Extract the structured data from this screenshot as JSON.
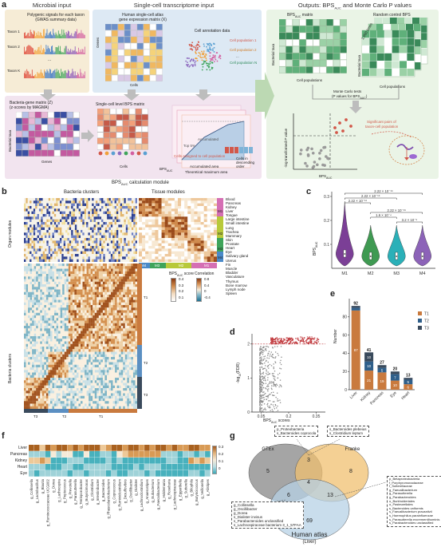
{
  "panel_a": {
    "letter": "a",
    "header_microbial": "Microbial input",
    "header_singlecell": "Single-cell transcriptome input",
    "header_outputs": "Outputs: BPS",
    "header_outputs_sub": "AUC",
    "header_outputs_tail": " and Monte Carlo P values",
    "polygenic_title": "Polygenic signals for each taxon",
    "polygenic_sub": "(GWAS summary data)",
    "taxa": [
      "Taxon 1",
      "Taxon 2",
      "Taxon K"
    ],
    "ellipsis": "...",
    "hs_atlas_title": "Human single-cell atlas",
    "hs_atlas_sub": "gene expression matrix (X)",
    "cell_annot": "Cell annotation data",
    "cell_pops": [
      "Cell population 1",
      "Cell population 2",
      "Cell population N"
    ],
    "genes_label": "Genes",
    "cells_label": "Cells",
    "bacteria_gene_title": "Bacteria-gene matrix (Z)",
    "bacteria_gene_sub": "(z-scores by MAGMA)",
    "bacterial_taxa": "Bacterial taxa",
    "sc_bps_title": "Single-cell level BPS matrix",
    "accumulated": "Accumulated",
    "top5": "Top 5%",
    "cells_assigned": "Cells assigned to cell population",
    "accumulated_area": "Accumulated area",
    "theoretical_max": "Theoretical maximum area",
    "cells_desc": "Cells in descending order",
    "bps_auc_eq": "BPS",
    "bps_calc_module": "BPS",
    "bps_calc_module_tail": " calculation module",
    "bps_matrix_title": "BPS",
    "bps_matrix_title_tail": " matrix",
    "random_control": "Random control BPS",
    "n1000": "1,000 times",
    "cell_pops_label": "Cell populations",
    "monte_carlo": "Monte Carlo tests",
    "monte_carlo_sub": "(P values for BPS",
    "log_p": "-log-transformed P value",
    "sig_pairs": "Significant pairs of",
    "sig_pairs2": "taxon-cell population",
    "bps_axis": "BPS"
  },
  "panel_b": {
    "letter": "b",
    "bacteria_clusters": "Bacteria clusters",
    "tissue_modules": "Tissue modules",
    "organ_modules": "Organ modules",
    "bacteria_clusters_y": "Bacteria clusters",
    "tissues_m1": [
      "Blood",
      "Pancreas",
      "Kidney",
      "Liver",
      "Tongue",
      "Large intestine",
      "Small intestine"
    ],
    "tissues_m2": [
      "Lung",
      "Trachea",
      "Mammary",
      "Skin",
      "Prostate",
      "Heart",
      "Eye",
      "Salivary gland"
    ],
    "tissues_m3": [
      "Uterus",
      "Fin",
      "Muscle",
      "Bladder",
      "Vasculature"
    ],
    "tissues_m4": [
      "Thymus",
      "Bone marrow",
      "Lymph node",
      "Spleen"
    ],
    "modules": [
      "M1",
      "M2",
      "M3",
      "M4"
    ],
    "bottom_modules": [
      "M4",
      "M3",
      "M2",
      "M1"
    ],
    "clusters": [
      "T3",
      "T2",
      "T1"
    ],
    "legend_bps": "BPS",
    "legend_bps_sub": "AUC",
    "legend_bps_tail": " score",
    "legend_bps_ticks": [
      "0.4",
      "0.3",
      "0.2",
      "0.1"
    ],
    "legend_corr": "Correlation",
    "legend_corr_ticks": [
      "0.8",
      "0.4",
      "0",
      "-0.4"
    ]
  },
  "panel_c": {
    "letter": "c",
    "ylabel": "BPS",
    "ylabel_sub": "AUC",
    "chart_data": {
      "type": "violin",
      "categories": [
        "M1",
        "M2",
        "M3",
        "M4"
      ],
      "colors": [
        "#7b3f96",
        "#3f9a52",
        "#2ab0b8",
        "#8c63b8"
      ],
      "medians": [
        0.06,
        0.05,
        0.05,
        0.05
      ],
      "ylim": [
        0,
        0.32
      ],
      "yticks": [
        0.1,
        0.2,
        0.3
      ],
      "pvalues": [
        {
          "label": "2.22 × 10⁻¹⁶",
          "from": "M1",
          "to": "M4"
        },
        {
          "label": "2.22 × 10⁻¹⁶",
          "from": "M1",
          "to": "M3"
        },
        {
          "label": "2.22 × 10⁻¹⁶",
          "from": "M1",
          "to": "M2"
        },
        {
          "label": "2.22 × 10⁻¹⁶",
          "from": "M2",
          "to": "M4"
        },
        {
          "label": "1.6 × 10⁻⁴",
          "from": "M2",
          "to": "M3"
        },
        {
          "label": "3.2 × 10⁻⁵",
          "from": "M3",
          "to": "M4"
        }
      ]
    }
  },
  "panel_d": {
    "letter": "d",
    "ylabel": "-log",
    "ylabel_sub": "10",
    "ylabel_tail": "(FDR)",
    "xlabel": "BPS",
    "xlabel_sub": "AUC",
    "xlabel_tail": " scores",
    "annotation": "N = 193",
    "chart_data": {
      "type": "scatter",
      "xlim": [
        0,
        0.4
      ],
      "xticks": [
        0.05,
        0.2,
        0.35
      ],
      "yticks": [
        0,
        1,
        2
      ],
      "threshold_y": 2,
      "n_significant": 193
    }
  },
  "panel_e": {
    "letter": "e",
    "ylabel": "Number",
    "legend": [
      "T1",
      "T2",
      "T3"
    ],
    "chart_data": {
      "type": "bar",
      "categories": [
        "Liver",
        "Kidney",
        "Pancreas",
        "Eye",
        "Heart"
      ],
      "totals": [
        92,
        41,
        27,
        20,
        13
      ],
      "series": [
        {
          "name": "T1",
          "values": [
            87,
            21,
            19,
            10,
            6
          ]
        },
        {
          "name": "T2",
          "values": [
            3,
            10,
            5,
            7,
            5
          ]
        },
        {
          "name": "T3",
          "values": [
            2,
            10,
            3,
            3,
            2
          ]
        }
      ],
      "yticks": [
        0,
        20,
        40,
        60,
        80
      ],
      "ylim": [
        0,
        100
      ],
      "colors": [
        "#c97a3e",
        "#2f5f8a",
        "#3a4a5c"
      ]
    }
  },
  "panel_f": {
    "letter": "f",
    "rows": [
      "Liver",
      "Pancreas",
      "Kidney",
      "Heart",
      "Eye"
    ],
    "columns": [
      "g_Collinsella",
      "g_Lactobacillus",
      "g_Blautia",
      "g_Ruminococcaceae UCG002",
      "g_Dorea",
      "g_Lachnospira",
      "g_Peptococcus",
      "g_Prevotella",
      "g_Parasutterella",
      "g_Terrisporobacter",
      "g_Butyricimonas",
      "g_Clostridium",
      "g_Intestinibacter",
      "g_Bacteroides",
      "g_Phascolarctobacterium",
      "g_Coprococcus",
      "g_Ruminiclostridium",
      "g_Desulfovibrio",
      "g_Oscillibacter",
      "g_Dialister",
      "g_Lachnoclostridium",
      "g_Anaerostipes",
      "g_Eubacterium",
      "g_Faecalibacterium",
      "g_Holdemania",
      "g_Roseburia",
      "g_Lachnospiraceae",
      "g_Eggerthella",
      "g_Sutterella",
      "g_Bilophila",
      "g_Butyricicoccus",
      "g_Veillonella",
      "g_Alistipes"
    ],
    "legend_ticks": [
      "0.3",
      "0.2",
      "0.1",
      "0"
    ]
  },
  "panel_g": {
    "letter": "g",
    "sets": [
      "GTEx",
      "Franke",
      "Human atlas",
      "(Liver)"
    ],
    "counts": [
      "5",
      "3",
      "8",
      "4",
      "6",
      "13",
      "69"
    ],
    "box_top_left": [
      "p_Proteobacteria",
      "s_Bacteroides coprocola"
    ],
    "box_top_right": [
      "s_Bacteroides plebeius",
      "s_Clostridium leptum"
    ],
    "box_left": [
      "g_Collinsella",
      "g_Oscillibacter",
      "g_Dorea",
      "s_Dialister invisus",
      "s_Parabacteroides unclassified",
      "s_Lachnospiraceae bacterium 3_1_57FAA"
    ],
    "box_right": [
      "p_Betaproteobacteria",
      "f_Porphyromonadaceae",
      "f_Sutterellaceae",
      "g_Faecalibacterium",
      "g_Parasutterella",
      "g_Parabacteroides",
      "o_Burkholderiales",
      "o_Pasteurellales",
      "s_Bacteroides uniformis",
      "s_Faecalibacterium prausnitzii",
      "s_Haemophilus parainfluenzae",
      "s_Parasutterella excrementihominis",
      "s_Parabacteroides unclassified"
    ]
  }
}
